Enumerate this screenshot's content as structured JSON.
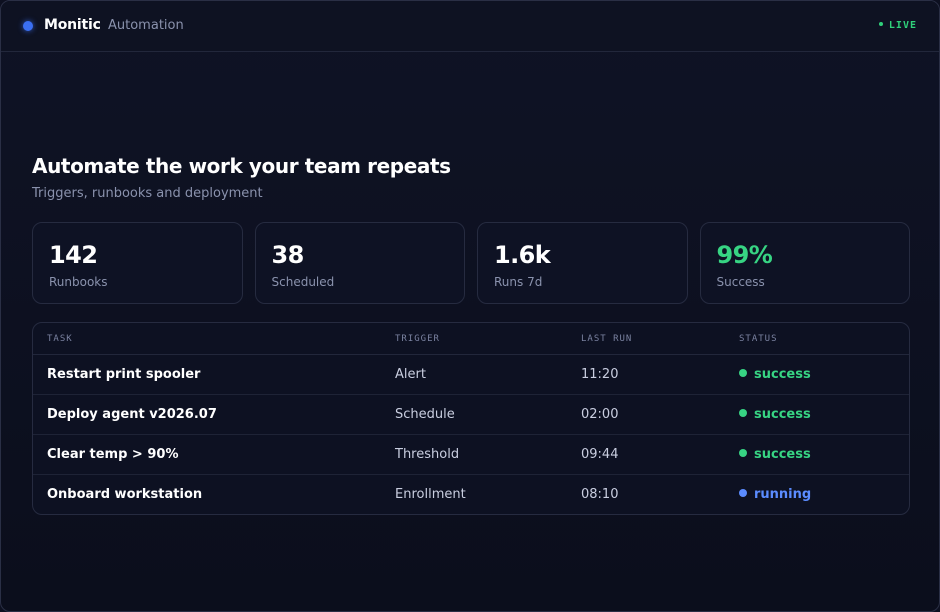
{
  "topbar": {
    "brand": "Monitic",
    "section": "Automation",
    "live_label": "LIVE"
  },
  "hero": {
    "title": "Automate the work your team repeats",
    "subtitle": "Triggers, runbooks and deployment"
  },
  "stats": [
    {
      "value": "142",
      "label": "Runbooks",
      "color": "#ffffff"
    },
    {
      "value": "38",
      "label": "Scheduled",
      "color": "#ffffff"
    },
    {
      "value": "1.6k",
      "label": "Runs 7d",
      "color": "#ffffff"
    },
    {
      "value": "99%",
      "label": "Success",
      "color": "#37d483"
    }
  ],
  "table": {
    "headers": {
      "task": "TASK",
      "trigger": "TRIGGER",
      "last_run": "LAST RUN",
      "status": "STATUS"
    },
    "rows": [
      {
        "task": "Restart print spooler",
        "trigger": "Alert",
        "last_run": "11:20",
        "status": "success"
      },
      {
        "task": "Deploy agent v2026.07",
        "trigger": "Schedule",
        "last_run": "02:00",
        "status": "success"
      },
      {
        "task": "Clear temp > 90%",
        "trigger": "Threshold",
        "last_run": "09:44",
        "status": "success"
      },
      {
        "task": "Onboard workstation",
        "trigger": "Enrollment",
        "last_run": "08:10",
        "status": "running"
      }
    ]
  },
  "colors": {
    "accent": "#3b6ff2",
    "live": "#2fd07a",
    "success": "#37d483",
    "running": "#5b8cff"
  }
}
